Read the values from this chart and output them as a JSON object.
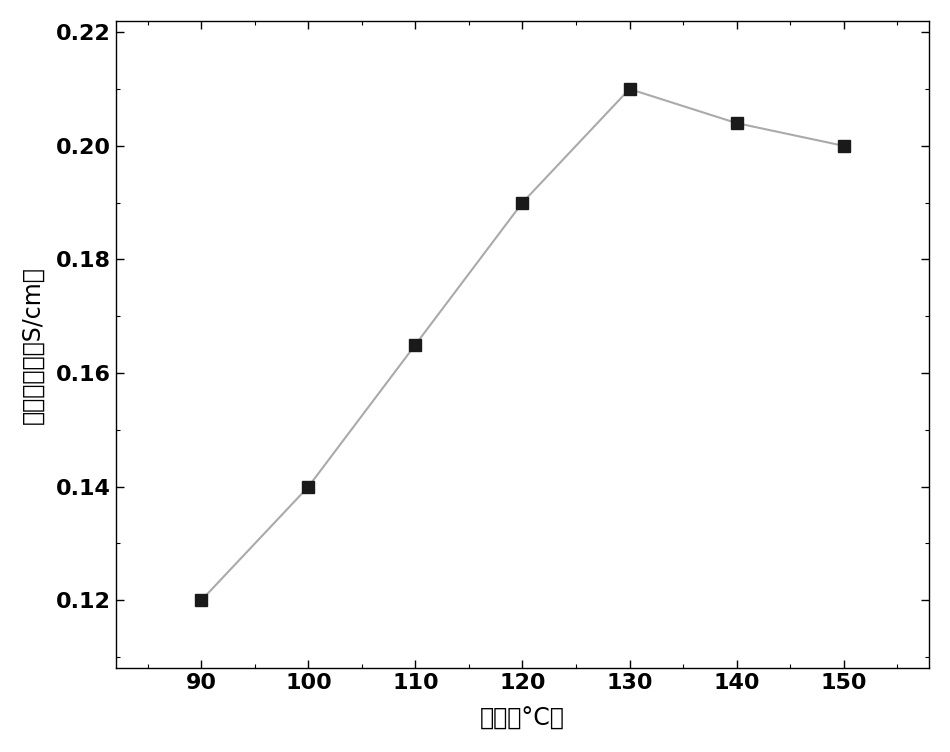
{
  "x": [
    90,
    100,
    110,
    120,
    130,
    140,
    150
  ],
  "y": [
    0.12,
    0.14,
    0.165,
    0.19,
    0.21,
    0.204,
    0.2
  ],
  "xlabel": "温度（°C）",
  "ylabel": "质子传导率（S/cm）",
  "xlim": [
    82,
    158
  ],
  "ylim": [
    0.108,
    0.222
  ],
  "xticks": [
    90,
    100,
    110,
    120,
    130,
    140,
    150
  ],
  "yticks": [
    0.12,
    0.14,
    0.16,
    0.18,
    0.2,
    0.22
  ],
  "line_color": "#aaaaaa",
  "marker_color": "#1a1a1a",
  "marker": "s",
  "marker_size": 8,
  "line_width": 1.5,
  "background_color": "#ffffff",
  "tick_fontsize": 16,
  "label_fontsize": 17,
  "tick_fontweight": "bold"
}
